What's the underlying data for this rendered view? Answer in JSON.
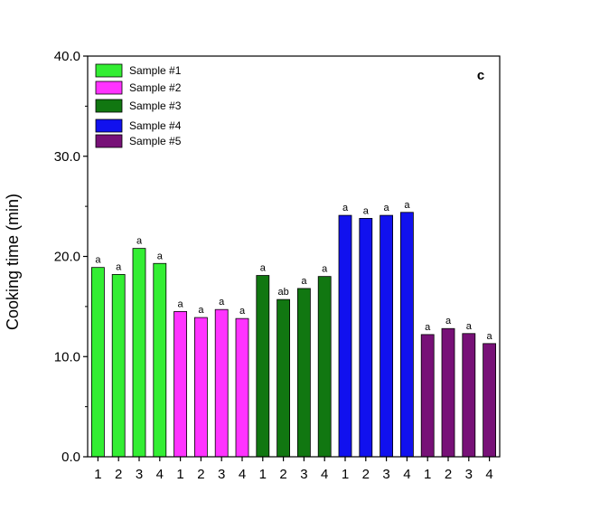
{
  "chart_data": {
    "type": "bar",
    "panel_label": "c",
    "ylabel": "Cooking time (min)",
    "xlabel": "",
    "ylim": [
      0,
      40
    ],
    "yticks": [
      "0.0",
      "10.0",
      "20.0",
      "30.0",
      "40.0"
    ],
    "grid": false,
    "legend_position": "top-left",
    "categories": [
      "1",
      "2",
      "3",
      "4"
    ],
    "series": [
      {
        "name": "Sample #1",
        "color": "#33ee33",
        "values": [
          18.9,
          18.2,
          20.8,
          19.3
        ],
        "letters": [
          "a",
          "a",
          "a",
          "a"
        ]
      },
      {
        "name": "Sample #2",
        "color": "#ff33ff",
        "values": [
          14.5,
          13.9,
          14.7,
          13.8
        ],
        "letters": [
          "a",
          "a",
          "a",
          "a"
        ]
      },
      {
        "name": "Sample #3",
        "color": "#117711",
        "values": [
          18.1,
          15.7,
          16.8,
          18.0
        ],
        "letters": [
          "a",
          "ab",
          "a",
          "a"
        ]
      },
      {
        "name": "Sample #4",
        "color": "#1111ee",
        "values": [
          24.1,
          23.8,
          24.1,
          24.4
        ],
        "letters": [
          "a",
          "a",
          "a",
          "a"
        ]
      },
      {
        "name": "Sample #5",
        "color": "#771177",
        "values": [
          12.2,
          12.8,
          12.3,
          11.3
        ],
        "letters": [
          "a",
          "a",
          "a",
          "a"
        ]
      }
    ]
  }
}
